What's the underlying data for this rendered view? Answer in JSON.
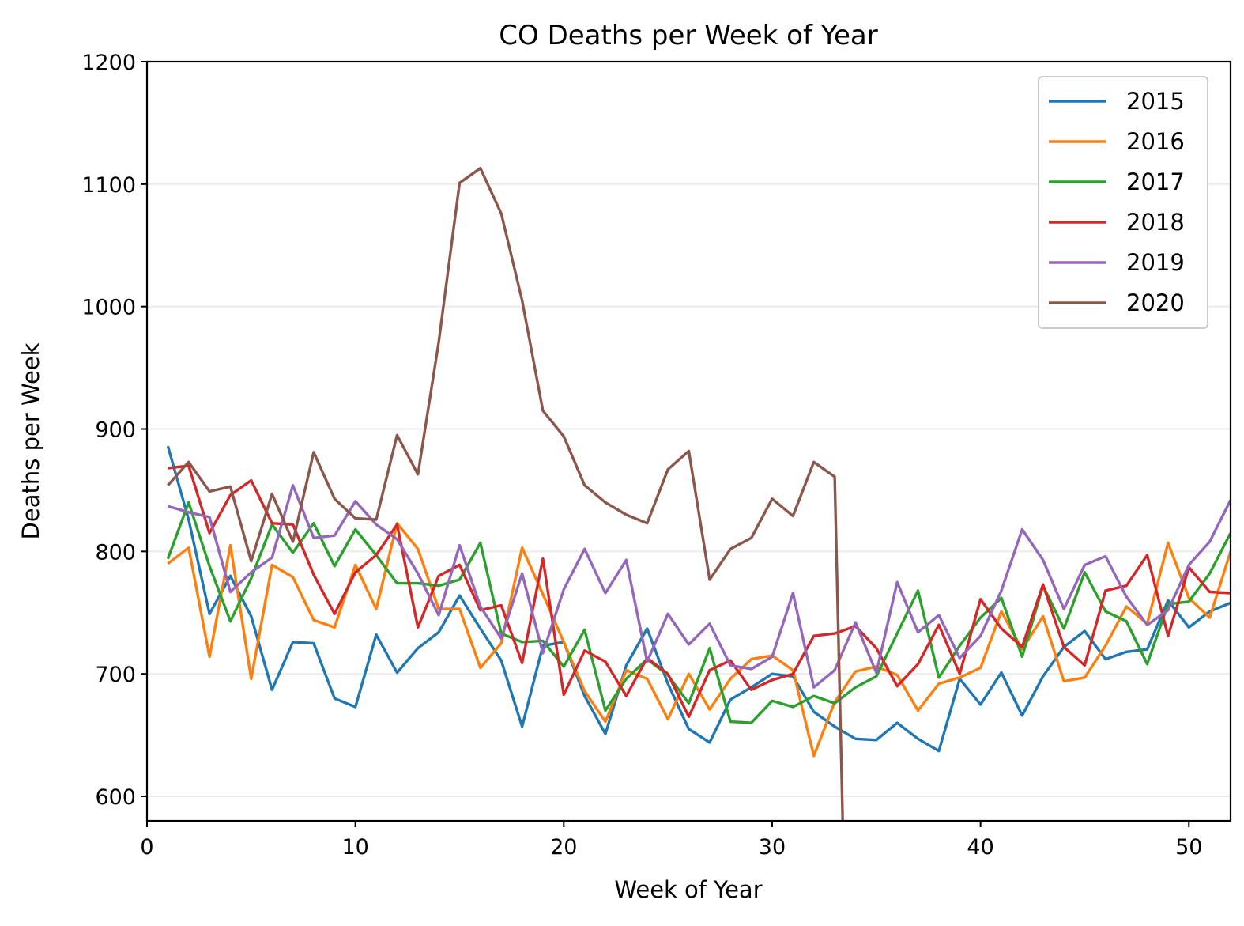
{
  "chart_data": {
    "type": "line",
    "title": "CO Deaths per Week of Year",
    "xlabel": "Week of Year",
    "ylabel": "Deaths per Week",
    "xlim": [
      0,
      52
    ],
    "ylim": [
      580,
      1200
    ],
    "xticks": [
      0,
      10,
      20,
      30,
      40,
      50
    ],
    "yticks": [
      600,
      700,
      800,
      900,
      1000,
      1100,
      1200
    ],
    "grid": "horizontal",
    "legend_position": "top-right",
    "series": [
      {
        "name": "2015",
        "color": "#1f77b4",
        "x": [
          1,
          2,
          3,
          4,
          5,
          6,
          7,
          8,
          9,
          10,
          11,
          12,
          13,
          14,
          15,
          16,
          17,
          18,
          19,
          20,
          21,
          22,
          23,
          24,
          25,
          26,
          27,
          28,
          29,
          30,
          31,
          32,
          33,
          34,
          35,
          36,
          37,
          38,
          39,
          40,
          41,
          42,
          43,
          44,
          45,
          46,
          47,
          48,
          49,
          50,
          51,
          52
        ],
        "y": [
          886,
          826,
          749,
          780,
          747,
          687,
          726,
          725,
          680,
          673,
          732,
          701,
          721,
          734,
          764,
          737,
          711,
          657,
          723,
          726,
          682,
          651,
          707,
          737,
          692,
          655,
          644,
          679,
          689,
          700,
          698,
          669,
          657,
          647,
          646,
          660,
          647,
          637,
          696,
          675,
          701,
          666,
          698,
          722,
          735,
          712,
          718,
          720,
          760,
          738,
          751,
          758
        ]
      },
      {
        "name": "2016",
        "color": "#ff7f0e",
        "x": [
          1,
          2,
          3,
          4,
          5,
          6,
          7,
          8,
          9,
          10,
          11,
          12,
          13,
          14,
          15,
          16,
          17,
          18,
          19,
          20,
          21,
          22,
          23,
          24,
          25,
          26,
          27,
          28,
          29,
          30,
          31,
          32,
          33,
          34,
          35,
          36,
          37,
          38,
          39,
          40,
          41,
          42,
          43,
          44,
          45,
          46,
          47,
          48,
          49,
          50,
          51,
          52
        ],
        "y": [
          790,
          803,
          714,
          805,
          696,
          789,
          779,
          744,
          738,
          789,
          753,
          823,
          802,
          753,
          753,
          705,
          725,
          803,
          765,
          726,
          686,
          661,
          703,
          696,
          663,
          700,
          671,
          696,
          712,
          715,
          703,
          633,
          677,
          702,
          706,
          699,
          670,
          692,
          697,
          705,
          751,
          720,
          747,
          694,
          697,
          723,
          755,
          741,
          807,
          762,
          746,
          800
        ]
      },
      {
        "name": "2017",
        "color": "#2ca02c",
        "x": [
          1,
          2,
          3,
          4,
          5,
          6,
          7,
          8,
          9,
          10,
          11,
          12,
          13,
          14,
          15,
          16,
          17,
          18,
          19,
          20,
          21,
          22,
          23,
          24,
          25,
          26,
          27,
          28,
          29,
          30,
          31,
          32,
          33,
          34,
          35,
          36,
          37,
          38,
          39,
          40,
          41,
          42,
          43,
          44,
          45,
          46,
          47,
          48,
          49,
          50,
          51,
          52
        ],
        "y": [
          794,
          840,
          788,
          743,
          778,
          822,
          799,
          823,
          788,
          818,
          797,
          774,
          774,
          772,
          777,
          807,
          733,
          726,
          727,
          706,
          736,
          670,
          696,
          712,
          699,
          676,
          721,
          661,
          660,
          678,
          673,
          682,
          676,
          689,
          698,
          733,
          768,
          697,
          723,
          746,
          762,
          714,
          772,
          737,
          783,
          751,
          743,
          708,
          757,
          759,
          782,
          815
        ]
      },
      {
        "name": "2018",
        "color": "#d62728",
        "x": [
          1,
          2,
          3,
          4,
          5,
          6,
          7,
          8,
          9,
          10,
          11,
          12,
          13,
          14,
          15,
          16,
          17,
          18,
          19,
          20,
          21,
          22,
          23,
          24,
          25,
          26,
          27,
          28,
          29,
          30,
          31,
          32,
          33,
          34,
          35,
          36,
          37,
          38,
          39,
          40,
          41,
          42,
          43,
          44,
          45,
          46,
          47,
          48,
          49,
          50,
          51,
          52
        ],
        "y": [
          868,
          870,
          815,
          846,
          858,
          823,
          822,
          781,
          749,
          783,
          797,
          822,
          738,
          780,
          789,
          752,
          756,
          709,
          794,
          683,
          719,
          710,
          682,
          713,
          700,
          665,
          703,
          711,
          687,
          695,
          700,
          731,
          733,
          739,
          721,
          690,
          708,
          740,
          700,
          761,
          737,
          722,
          773,
          722,
          707,
          768,
          772,
          797,
          731,
          787,
          767,
          766
        ]
      },
      {
        "name": "2019",
        "color": "#9467bd",
        "x": [
          1,
          2,
          3,
          4,
          5,
          6,
          7,
          8,
          9,
          10,
          11,
          12,
          13,
          14,
          15,
          16,
          17,
          18,
          19,
          20,
          21,
          22,
          23,
          24,
          25,
          26,
          27,
          28,
          29,
          30,
          31,
          32,
          33,
          34,
          35,
          36,
          37,
          38,
          39,
          40,
          41,
          42,
          43,
          44,
          45,
          46,
          47,
          48,
          49,
          50,
          51,
          52
        ],
        "y": [
          837,
          832,
          828,
          767,
          783,
          795,
          854,
          811,
          813,
          841,
          822,
          810,
          782,
          748,
          805,
          755,
          729,
          782,
          717,
          769,
          802,
          766,
          793,
          710,
          749,
          724,
          741,
          707,
          704,
          714,
          766,
          689,
          703,
          742,
          701,
          775,
          734,
          748,
          713,
          731,
          768,
          818,
          793,
          753,
          789,
          796,
          763,
          740,
          752,
          789,
          808,
          842
        ]
      },
      {
        "name": "2020",
        "color": "#8c564b",
        "x": [
          1,
          2,
          3,
          4,
          5,
          6,
          7,
          8,
          9,
          10,
          11,
          12,
          13,
          14,
          15,
          16,
          17,
          18,
          19,
          20,
          21,
          22,
          23,
          24,
          25,
          26,
          27,
          28,
          29,
          30,
          31,
          32,
          33,
          33.4
        ],
        "y": [
          854,
          873,
          849,
          853,
          792,
          847,
          808,
          881,
          843,
          827,
          826,
          895,
          863,
          971,
          1101,
          1113,
          1076,
          1005,
          915,
          894,
          854,
          840,
          830,
          823,
          867,
          882,
          777,
          802,
          811,
          843,
          829,
          873,
          861,
          570
        ]
      }
    ]
  }
}
